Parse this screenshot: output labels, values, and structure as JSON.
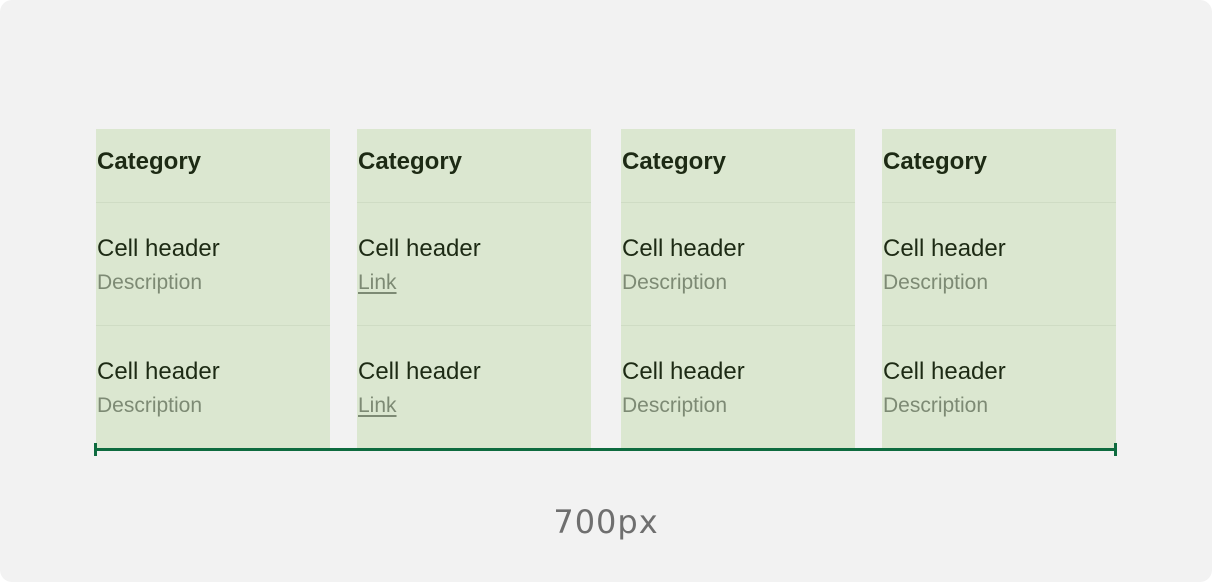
{
  "columns": [
    {
      "category": "Category",
      "rows": [
        {
          "header": "Cell header",
          "secondary": "Description",
          "is_link": false
        },
        {
          "header": "Cell header",
          "secondary": "Description",
          "is_link": false
        }
      ]
    },
    {
      "category": "Category",
      "rows": [
        {
          "header": "Cell header",
          "secondary": "Link",
          "is_link": true
        },
        {
          "header": "Cell header",
          "secondary": "Link",
          "is_link": true
        }
      ]
    },
    {
      "category": "Category",
      "rows": [
        {
          "header": "Cell header",
          "secondary": "Description",
          "is_link": false
        },
        {
          "header": "Cell header",
          "secondary": "Description",
          "is_link": false
        }
      ]
    },
    {
      "category": "Category",
      "rows": [
        {
          "header": "Cell header",
          "secondary": "Description",
          "is_link": false
        },
        {
          "header": "Cell header",
          "secondary": "Description",
          "is_link": false
        }
      ]
    }
  ],
  "measurement": {
    "label": "700px"
  },
  "colors": {
    "frame_background": "#f2f2f2",
    "column_fill": "#dbe7d0",
    "measure_line": "#0e6b3f",
    "text_primary": "#1d2a14",
    "text_secondary": "#7d8a74"
  }
}
